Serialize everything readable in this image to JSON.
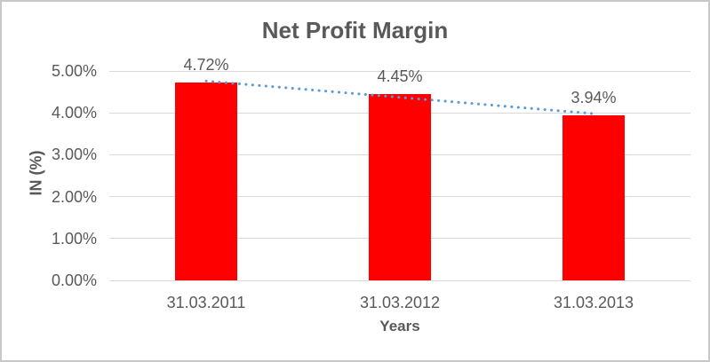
{
  "chart_data": {
    "type": "bar",
    "title": "Net Profit Margin",
    "xlabel": "Years",
    "ylabel": "IN (%)",
    "categories": [
      "31.03.2011",
      "31.03.2012",
      "31.03.2013"
    ],
    "values": [
      4.72,
      4.45,
      3.94
    ],
    "data_labels": [
      "4.72%",
      "4.45%",
      "3.94%"
    ],
    "ytick_values": [
      0,
      1,
      2,
      3,
      4,
      5
    ],
    "ytick_labels": [
      "0.00%",
      "1.00%",
      "2.00%",
      "3.00%",
      "4.00%",
      "5.00%"
    ],
    "ylim": [
      0,
      5
    ],
    "grid": true,
    "legend": "none",
    "bar_color": "#ff0000",
    "gridline_color": "#d9d9d9",
    "text_color": "#595959",
    "frame_color": "#c8c8c8",
    "trendline": {
      "type": "linear",
      "style": "dotted",
      "color": "#5b9bd5"
    }
  }
}
